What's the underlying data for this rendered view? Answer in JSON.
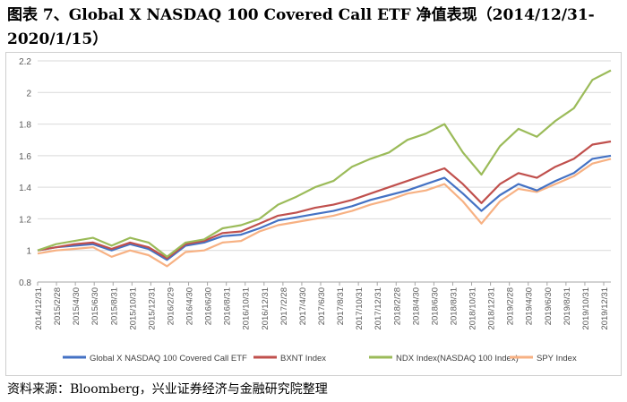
{
  "title": "图表 7、Global X NASDAQ 100 Covered Call ETF 净值表现（2014/12/31-2020/1/15）",
  "source": "资料来源：Bloomberg，兴业证券经济与金融研究院整理",
  "chart_data": {
    "type": "line",
    "title": "",
    "xlabel": "",
    "ylabel": "",
    "ylim": [
      0.8,
      2.2
    ],
    "yticks": [
      0.8,
      1,
      1.2,
      1.4,
      1.6,
      1.8,
      2,
      2.2
    ],
    "grid": "horizontal",
    "legend": "bottom",
    "x_tick_labels": [
      "2014/12/31",
      "2015/2/28",
      "2015/4/30",
      "2015/6/30",
      "2015/8/31",
      "2015/10/31",
      "2015/12/31",
      "2016/2/29",
      "2016/4/30",
      "2016/6/30",
      "2016/8/31",
      "2016/10/31",
      "2016/12/31",
      "2017/2/28",
      "2017/4/30",
      "2017/6/30",
      "2017/8/31",
      "2017/10/31",
      "2017/12/31",
      "2018/2/28",
      "2018/4/30",
      "2018/6/30",
      "2018/8/31",
      "2018/10/31",
      "2018/12/31",
      "2019/2/28",
      "2019/4/30",
      "2019/6/30",
      "2019/8/31",
      "2019/10/31",
      "2019/12/31"
    ],
    "x": [
      "2014/12/31",
      "2015/2/28",
      "2015/4/30",
      "2015/6/30",
      "2015/8/31",
      "2015/10/31",
      "2015/12/31",
      "2016/2/29",
      "2016/4/30",
      "2016/6/30",
      "2016/8/31",
      "2016/10/31",
      "2016/12/31",
      "2017/2/28",
      "2017/4/30",
      "2017/6/30",
      "2017/8/31",
      "2017/10/31",
      "2017/12/31",
      "2018/2/28",
      "2018/4/30",
      "2018/6/30",
      "2018/8/31",
      "2018/10/31",
      "2018/12/31",
      "2019/2/28",
      "2019/4/30",
      "2019/6/30",
      "2019/8/31",
      "2019/10/31",
      "2019/12/31",
      "2020/1/15"
    ],
    "series": [
      {
        "name": "Global X NASDAQ 100 Covered Call ETF",
        "color": "#4472c4",
        "values": [
          1.0,
          1.02,
          1.03,
          1.04,
          1.0,
          1.04,
          1.01,
          0.94,
          1.03,
          1.05,
          1.09,
          1.1,
          1.14,
          1.19,
          1.21,
          1.23,
          1.25,
          1.28,
          1.32,
          1.35,
          1.38,
          1.42,
          1.46,
          1.36,
          1.25,
          1.35,
          1.42,
          1.38,
          1.44,
          1.49,
          1.58,
          1.6
        ]
      },
      {
        "name": "BXNT Index",
        "color": "#c0504d",
        "values": [
          1.0,
          1.02,
          1.04,
          1.05,
          1.01,
          1.05,
          1.02,
          0.95,
          1.04,
          1.06,
          1.11,
          1.12,
          1.17,
          1.22,
          1.24,
          1.27,
          1.29,
          1.32,
          1.36,
          1.4,
          1.44,
          1.48,
          1.52,
          1.42,
          1.3,
          1.42,
          1.49,
          1.46,
          1.53,
          1.58,
          1.67,
          1.69
        ]
      },
      {
        "name": "NDX Index(NASDAQ 100 Index)",
        "color": "#9bbb59",
        "values": [
          1.0,
          1.04,
          1.06,
          1.08,
          1.03,
          1.08,
          1.05,
          0.96,
          1.05,
          1.07,
          1.14,
          1.16,
          1.2,
          1.29,
          1.34,
          1.4,
          1.44,
          1.53,
          1.58,
          1.62,
          1.7,
          1.74,
          1.8,
          1.62,
          1.48,
          1.66,
          1.77,
          1.72,
          1.82,
          1.9,
          2.08,
          2.14
        ]
      },
      {
        "name": "SPY Index",
        "color": "#f7b183",
        "values": [
          0.98,
          1.0,
          1.01,
          1.02,
          0.96,
          1.0,
          0.97,
          0.9,
          0.99,
          1.0,
          1.05,
          1.06,
          1.12,
          1.16,
          1.18,
          1.2,
          1.22,
          1.25,
          1.29,
          1.32,
          1.36,
          1.38,
          1.42,
          1.31,
          1.17,
          1.31,
          1.39,
          1.37,
          1.42,
          1.47,
          1.55,
          1.58
        ]
      }
    ]
  }
}
